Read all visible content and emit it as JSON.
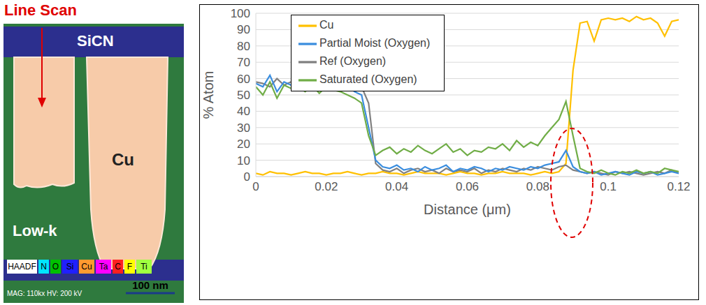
{
  "micrograph": {
    "title": "Line Scan",
    "labels": [
      "SiCN",
      "Cu",
      "Low-k"
    ],
    "legend_items": [
      "HAADF",
      "N",
      "O",
      "Si",
      "Cu",
      "Ta",
      "C",
      "F",
      "Ti"
    ],
    "info": "MAG: 110kx   HV: 200 kV",
    "scale_bar": "100 nm"
  },
  "chart_data": {
    "type": "line",
    "x_label": "Distance (μm)",
    "y_label": "% Atom",
    "xlim": [
      0,
      0.12
    ],
    "xticks": [
      0,
      0.02,
      0.04,
      0.06,
      0.08,
      0.1,
      0.12
    ],
    "ylim": [
      0,
      100
    ],
    "yticks": [
      0,
      10,
      20,
      30,
      40,
      50,
      60,
      70,
      80,
      90,
      100
    ],
    "grid": true,
    "legend": "top left",
    "x": [
      0,
      0.002,
      0.004,
      0.006,
      0.008,
      0.01,
      0.012,
      0.014,
      0.016,
      0.018,
      0.02,
      0.022,
      0.024,
      0.026,
      0.028,
      0.03,
      0.032,
      0.034,
      0.036,
      0.038,
      0.04,
      0.042,
      0.044,
      0.046,
      0.048,
      0.05,
      0.052,
      0.054,
      0.056,
      0.058,
      0.06,
      0.062,
      0.064,
      0.066,
      0.068,
      0.07,
      0.072,
      0.074,
      0.076,
      0.078,
      0.08,
      0.082,
      0.084,
      0.086,
      0.088,
      0.09,
      0.092,
      0.094,
      0.096,
      0.098,
      0.1,
      0.102,
      0.104,
      0.106,
      0.108,
      0.11,
      0.112,
      0.114,
      0.116,
      0.118,
      0.12
    ],
    "series": [
      {
        "name": "Cu",
        "color": "#FFC000",
        "values": [
          2,
          1,
          3,
          2,
          2,
          1,
          2,
          3,
          2,
          2,
          1,
          2,
          2,
          3,
          2,
          1,
          2,
          2,
          3,
          2,
          2,
          1,
          2,
          3,
          2,
          2,
          2,
          1,
          2,
          3,
          2,
          2,
          1,
          2,
          2,
          3,
          2,
          2,
          2,
          1,
          2,
          3,
          2,
          3,
          8,
          65,
          94,
          95,
          83,
          96,
          97,
          96,
          97,
          95,
          98,
          96,
          97,
          94,
          86,
          95,
          96
        ]
      },
      {
        "name": "Ref (Oxygen)",
        "color": "#808080",
        "values": [
          58,
          57,
          55,
          60,
          56,
          58,
          59,
          55,
          57,
          60,
          56,
          59,
          58,
          61,
          57,
          55,
          45,
          8,
          4,
          3,
          5,
          2,
          4,
          5,
          3,
          4,
          2,
          5,
          3,
          4,
          3,
          5,
          2,
          4,
          3,
          5,
          4,
          3,
          5,
          4,
          6,
          5,
          4,
          6,
          7,
          4,
          3,
          2,
          3,
          2,
          1,
          3,
          2,
          3,
          2,
          1,
          2,
          3,
          2,
          4,
          2
        ]
      },
      {
        "name": "Partial Moist (Oxygen)",
        "color": "#3A8DDE",
        "values": [
          57,
          55,
          62,
          52,
          58,
          56,
          54,
          57,
          55,
          53,
          57,
          55,
          53,
          56,
          52,
          50,
          30,
          10,
          6,
          5,
          7,
          4,
          5,
          3,
          6,
          4,
          5,
          7,
          3,
          5,
          4,
          6,
          5,
          3,
          5,
          4,
          6,
          5,
          4,
          6,
          5,
          7,
          8,
          9,
          16,
          6,
          3,
          2,
          3,
          1,
          2,
          3,
          2,
          1,
          3,
          2,
          3,
          1,
          2,
          3,
          2
        ]
      },
      {
        "name": "Saturated (Oxygen)",
        "color": "#70AD47",
        "values": [
          55,
          50,
          58,
          48,
          56,
          54,
          55,
          52,
          56,
          51,
          55,
          53,
          52,
          50,
          48,
          45,
          25,
          13,
          16,
          18,
          14,
          17,
          15,
          19,
          16,
          14,
          17,
          20,
          15,
          17,
          13,
          16,
          15,
          18,
          17,
          20,
          16,
          22,
          18,
          21,
          19,
          25,
          30,
          35,
          46,
          25,
          5,
          3,
          2,
          4,
          2,
          1,
          3,
          2,
          4,
          2,
          3,
          2,
          5,
          4,
          3
        ]
      }
    ]
  }
}
